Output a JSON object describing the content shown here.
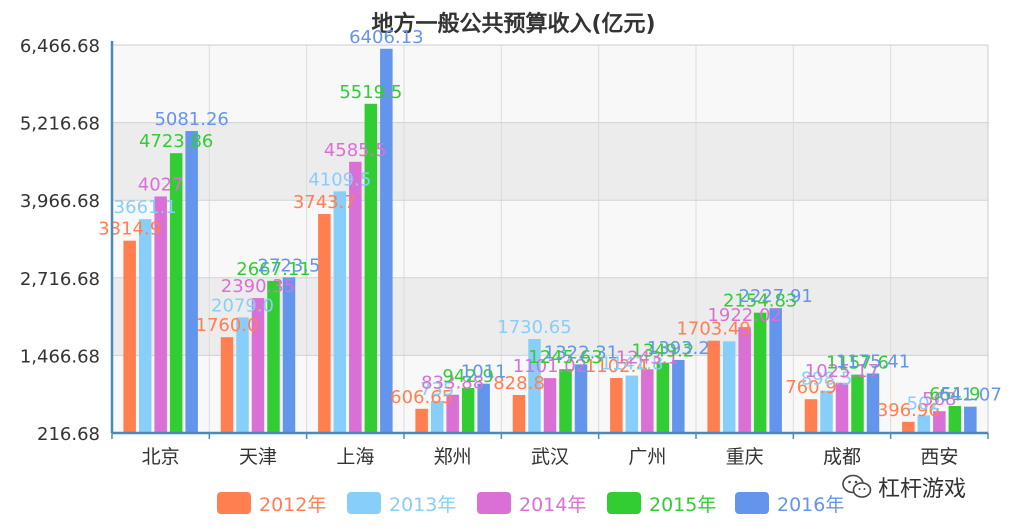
{
  "chart_data": {
    "type": "bar",
    "title": "地方一般公共预算收入(亿元)",
    "xlabel": "",
    "ylabel": "",
    "ylim": [
      216.68,
      6466.68
    ],
    "yticks": [
      "216.68",
      "1,466.68",
      "2,716.68",
      "3,966.68",
      "5,216.68",
      "6,466.68"
    ],
    "ytick_values": [
      216.68,
      1466.68,
      2716.68,
      3966.68,
      5216.68,
      6466.68
    ],
    "grid": true,
    "legend_position": "bottom",
    "categories": [
      "北京",
      "天津",
      "上海",
      "郑州",
      "武汉",
      "广州",
      "重庆",
      "成都",
      "西安"
    ],
    "series": [
      {
        "name": "2012年",
        "color": "#ff7f50",
        "values": [
          3314.9,
          1760.0,
          3743.7,
          606.65,
          828.8,
          1102.4,
          1703.49,
          760.9,
          396.96
        ],
        "labels": [
          "3314.9",
          "1760.0",
          "3743.7",
          "606.65",
          "828.8",
          "1102.4",
          "1703.49",
          "760.9",
          "396.96"
        ]
      },
      {
        "name": "2013年",
        "color": "#87cefa",
        "values": [
          3661.1,
          2079.0,
          4109.5,
          735.0,
          1730.65,
          1141.8,
          1693.24,
          898.5,
          502.0
        ],
        "labels": [
          "3661.1",
          "2079.0",
          "4109.5",
          "735",
          "1730.65",
          "1141.8",
          "",
          "898.5",
          "502"
        ]
      },
      {
        "name": "2014年",
        "color": "#da70d6",
        "values": [
          4027.0,
          2390.35,
          4585.5,
          833.88,
          1101.02,
          1243.1,
          1922.02,
          1025.17,
          568.0
        ],
        "labels": [
          "4027",
          "2390.35",
          "4585.5",
          "833.88",
          "1101.02",
          "1243.1",
          "1922.02",
          "1025.17",
          "568"
        ]
      },
      {
        "name": "2015年",
        "color": "#32cd32",
        "values": [
          4723.86,
          2667.11,
          5519.5,
          942.9,
          1245.63,
          1349.2,
          2154.83,
          1157.6,
          651.9
        ],
        "labels": [
          "4723.86",
          "2667.11",
          "5519.5",
          "942.9",
          "1245.63",
          "1349.2",
          "2154.83",
          "1157.6",
          "651.9"
        ]
      },
      {
        "name": "2016年",
        "color": "#6495ed",
        "values": [
          5081.26,
          2723.5,
          6406.13,
          1011.0,
          1322.31,
          1393.2,
          2227.91,
          1175.41,
          641.07
        ],
        "labels": [
          "5081.26",
          "2723.5",
          "6406.13",
          "1011",
          "1322.31",
          "1393.2",
          "2227.91",
          "1175.41",
          "641.07"
        ]
      }
    ]
  },
  "watermark": {
    "text": "杠杆游戏",
    "icon": "wechat-icon"
  }
}
